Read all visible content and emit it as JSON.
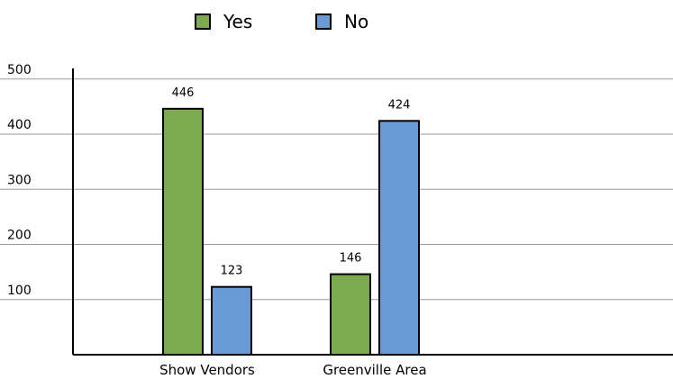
{
  "chart_data": {
    "type": "bar",
    "categories": [
      "Show Vendors",
      "Greenville Area"
    ],
    "series": [
      {
        "name": "Yes",
        "color": "#7daa50",
        "values": [
          446,
          146
        ]
      },
      {
        "name": "No",
        "color": "#6a9ad4",
        "values": [
          123,
          424
        ]
      }
    ],
    "yticks": [
      100,
      200,
      300,
      400,
      500
    ],
    "ylim": [
      0,
      500
    ],
    "grid": true,
    "legend": "top-center",
    "data_labels": true
  }
}
